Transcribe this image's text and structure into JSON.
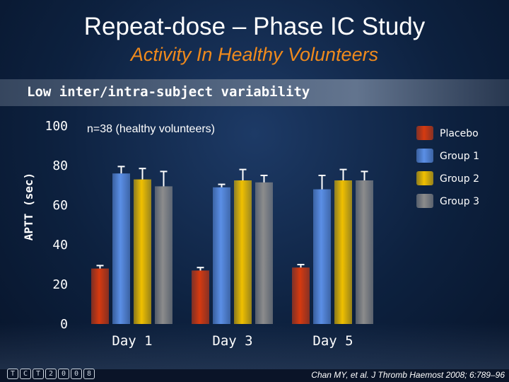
{
  "header": {
    "title": "Repeat-dose – Phase IC Study",
    "subtitle": "Activity In Healthy Volunteers",
    "band_text": "Low inter/intra-subject variability"
  },
  "footer": {
    "citation": "Chan MY, et al. J Thromb Haemost 2008; 6:789–96",
    "logo_glyphs": [
      "T",
      "C",
      "T",
      "2",
      "0",
      "0",
      "8"
    ]
  },
  "colors": {
    "title": "#ffffff",
    "subtitle": "#f08a1c",
    "Placebo": "#d63a10",
    "Group 1": "#5b8fe6",
    "Group 2": "#f0c000",
    "Group 3": "#8c8c8c"
  },
  "chart_data": {
    "type": "bar",
    "title": "",
    "annotation": "n=38 (healthy volunteers)",
    "xlabel": "",
    "ylabel": "APTT (sec)",
    "ylim": [
      0,
      100
    ],
    "yticks": [
      0,
      20,
      40,
      60,
      80,
      100
    ],
    "categories": [
      "Day 1",
      "Day 3",
      "Day 5"
    ],
    "legend_position": "top-right",
    "series": [
      {
        "name": "Placebo",
        "values": [
          28,
          27,
          28.5
        ],
        "errors": [
          1.5,
          1.5,
          1.5
        ]
      },
      {
        "name": "Group 1",
        "values": [
          76,
          69,
          68
        ],
        "errors": [
          3.5,
          1.5,
          7
        ]
      },
      {
        "name": "Group 2",
        "values": [
          73,
          72.5,
          72.5
        ],
        "errors": [
          5.5,
          5.5,
          5.5
        ]
      },
      {
        "name": "Group 3",
        "values": [
          69.5,
          71.5,
          72.5
        ],
        "errors": [
          7.5,
          3.5,
          4.5
        ]
      }
    ]
  }
}
